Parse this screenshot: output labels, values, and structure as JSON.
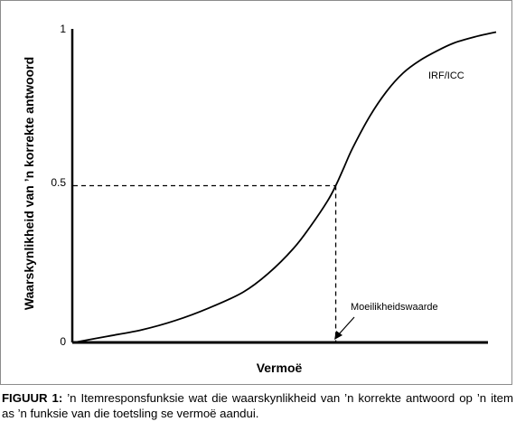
{
  "chart_data": {
    "type": "line",
    "xlabel": "Vermoë",
    "ylabel": "Waarskynlikheid van ’n korrekte antwoord",
    "ylim": [
      0,
      1
    ],
    "y_ticks": [
      "0",
      "0.5",
      "1"
    ],
    "grid": false,
    "legend": "none",
    "series": [
      {
        "name": "IRF/ICC",
        "x": [
          0.0,
          0.08,
          0.16,
          0.24,
          0.32,
          0.4,
          0.46,
          0.52,
          0.56,
          0.6,
          0.62,
          0.64,
          0.66,
          0.7,
          0.74,
          0.78,
          0.82,
          0.86,
          0.9,
          0.95,
          1.0
        ],
        "y": [
          0.0,
          0.02,
          0.04,
          0.07,
          0.11,
          0.16,
          0.22,
          0.3,
          0.37,
          0.45,
          0.5,
          0.56,
          0.62,
          0.72,
          0.8,
          0.86,
          0.9,
          0.93,
          0.955,
          0.975,
          0.99
        ]
      }
    ],
    "reference": {
      "x": 0.62,
      "y": 0.5
    },
    "annotations": [
      {
        "text": "IRF/ICC"
      },
      {
        "text": "Moeilikheidswaarde"
      }
    ]
  },
  "caption": {
    "lead": "FIGUUR 1:",
    "text": " ’n Itemresponsfunksie wat die waarskynlikheid van ’n korrekte antwoord op ’n item as ’n funksie van die toetsling se vermoë aandui."
  },
  "colors": {
    "line": "#000000",
    "frame": "#8c8c8c"
  }
}
